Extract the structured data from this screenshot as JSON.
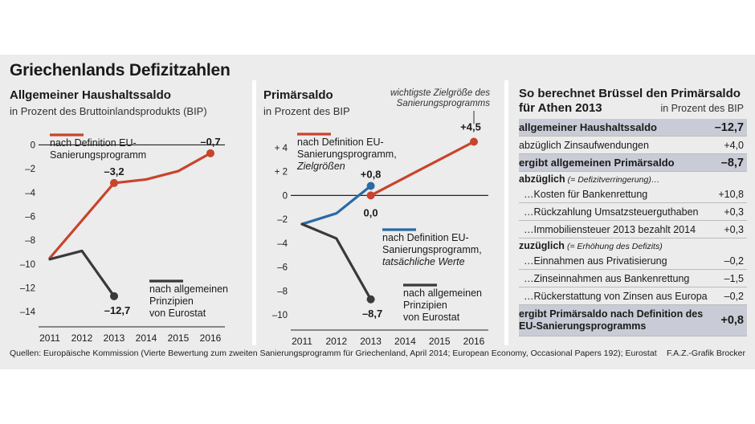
{
  "title": "Griechenlands Defizitzahlen",
  "sources": "Quellen: Europäische Kommission (Vierte Bewertung zum zweiten Sanierungsprogramm für Griechenland, April 2014; European Economy, Occasional Papers 192); Eurostat",
  "credit": "F.A.Z.-Grafik Brocker",
  "colors": {
    "eu": "#c8442c",
    "general": "#3a3a3a",
    "actual": "#2a6aa5",
    "highlight": "#c9ccd6",
    "background": "#ececec"
  },
  "chart_data": [
    {
      "type": "line",
      "title": "Allgemeiner Haushaltssaldo",
      "subtitle": "in Prozent des Bruttoinlandsprodukts (BIP)",
      "categories": [
        "2011",
        "2012",
        "2013",
        "2014",
        "2015",
        "2016"
      ],
      "ylim": [
        -14.6,
        0.3
      ],
      "yticks": [
        0,
        -2,
        -4,
        -6,
        -8,
        -10,
        -12,
        -14
      ],
      "ytick_labels": [
        "0",
        "–2",
        "–4",
        "–6",
        "–8",
        "–10",
        "–12",
        "–14"
      ],
      "grid": false,
      "series": [
        {
          "name": "nach Definition EU-Sanierungsprogramm",
          "legend_lines": [
            "nach Definition EU-",
            "Sanierungsprogramm"
          ],
          "color": "#c8442c",
          "x": [
            2011,
            2013,
            2014,
            2015,
            2016
          ],
          "values": [
            -9.5,
            -3.2,
            -2.9,
            -2.2,
            -0.7
          ]
        },
        {
          "name": "nach allgemeinen Prinzipien von Eurostat",
          "legend_lines": [
            "nach allgemeinen",
            "Prinzipien",
            "von Eurostat"
          ],
          "color": "#3a3a3a",
          "x": [
            2011,
            2012,
            2013
          ],
          "values": [
            -9.6,
            -8.9,
            -12.7
          ]
        }
      ],
      "annotations": [
        {
          "text": "–3,2",
          "x": 2013,
          "y": -3.2
        },
        {
          "text": "–0,7",
          "x": 2016,
          "y": -0.7
        },
        {
          "text": "–12,7",
          "x": 2013,
          "y": -12.7
        }
      ]
    },
    {
      "type": "line",
      "title": "Primärsaldo",
      "subtitle": "in Prozent des BIP",
      "note_lines": [
        "wichtigste Zielgröße des",
        "Sanierungsprogramms"
      ],
      "categories": [
        "2011",
        "2012",
        "2013",
        "2014",
        "2015",
        "2016"
      ],
      "ylim": [
        -10.6,
        4.6
      ],
      "yticks": [
        4,
        2,
        0,
        -2,
        -4,
        -6,
        -8,
        -10
      ],
      "ytick_labels": [
        "+ 4",
        "+ 2",
        "0",
        "–2",
        "–4",
        "–6",
        "–8",
        "–10"
      ],
      "grid": false,
      "series": [
        {
          "name": "nach Definition EU-Sanierungsprogramm, Zielgrößen",
          "legend_lines": [
            "nach Definition EU-",
            "Sanierungsprogramm,",
            "Zielgrößen"
          ],
          "color": "#c8442c",
          "x": [
            2013,
            2016
          ],
          "values": [
            0.0,
            4.5
          ]
        },
        {
          "name": "nach Definition EU-Sanierungsprogramm, tatsächliche Werte",
          "legend_lines": [
            "nach Definition EU-",
            "Sanierungsprogramm,",
            "tatsächliche Werte"
          ],
          "color": "#2a6aa5",
          "x": [
            2011,
            2012,
            2013
          ],
          "values": [
            -2.4,
            -1.5,
            0.8
          ]
        },
        {
          "name": "nach allgemeinen Prinzipien von Eurostat",
          "legend_lines": [
            "nach allgemeinen",
            "Prinzipien",
            "von Eurostat"
          ],
          "color": "#3a3a3a",
          "x": [
            2011,
            2012,
            2013
          ],
          "values": [
            -2.4,
            -3.6,
            -8.7
          ]
        }
      ],
      "annotations": [
        {
          "text": "+0,8",
          "x": 2013,
          "y": 0.8
        },
        {
          "text": "0,0",
          "x": 2013,
          "y": 0.0
        },
        {
          "text": "+4,5",
          "x": 2016,
          "y": 4.5
        },
        {
          "text": "–8,7",
          "x": 2013,
          "y": -8.7
        }
      ]
    },
    {
      "type": "table",
      "title_lines": [
        "So berechnet Brüssel den Primärsaldo",
        "für Athen 2013"
      ],
      "unit": "in Prozent des BIP",
      "rows": [
        {
          "label": "allgemeiner Haushaltssaldo",
          "value": "–12,7",
          "style": "hl"
        },
        {
          "label": "abzüglich Zinsaufwendungen",
          "value": "+4,0",
          "style": "plain"
        },
        {
          "label": "ergibt allgemeinen Primärsaldo",
          "value": "–8,7",
          "style": "hl"
        },
        {
          "label": "abzüglich",
          "value": "",
          "paren": "(= Defizitverringerung)…",
          "style": "sub"
        },
        {
          "label": "…Kosten für Bankenrettung",
          "value": "+10,8",
          "style": "dot"
        },
        {
          "label": "…Rückzahlung Umsatzsteuerguthaben",
          "value": "+0,3",
          "style": "dot"
        },
        {
          "label": "…Immobiliensteuer 2013 bezahlt 2014",
          "value": "+0,3",
          "style": "dot"
        },
        {
          "label": "zuzüglich",
          "value": "",
          "paren": "(= Erhöhung des Defizits)",
          "style": "sub"
        },
        {
          "label": "…Einnahmen aus Privatisierung",
          "value": "–0,2",
          "style": "dot"
        },
        {
          "label": "…Zinseinnahmen aus Bankenrettung",
          "value": "–1,5",
          "style": "dot"
        },
        {
          "label": "…Rückerstattung von Zinsen aus Europa",
          "value": "–0,2",
          "style": "dot"
        },
        {
          "label": "ergibt Primärsaldo nach Definition des EU-Sanierungsprogramms",
          "value": "+0,8",
          "style": "tall"
        }
      ]
    }
  ]
}
